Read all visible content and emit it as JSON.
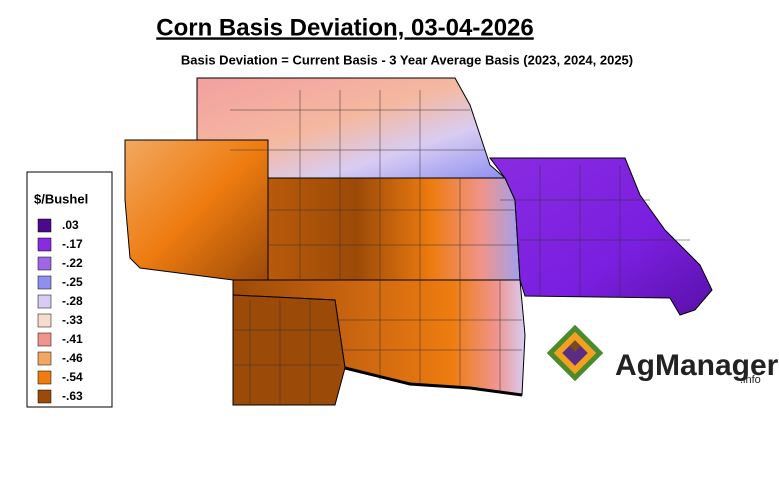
{
  "title": "Corn Basis Deviation, 03-04-2026",
  "subtitle": "Basis Deviation = Current Basis - 3 Year Average Basis (2023, 2024, 2025)",
  "legend": {
    "title": "$/Bushel",
    "items": [
      {
        "label": ".03",
        "color": "#4b0a8c"
      },
      {
        "label": "-.17",
        "color": "#8a2be2"
      },
      {
        "label": "-.22",
        "color": "#a066e6"
      },
      {
        "label": "-.25",
        "color": "#8f8ff0"
      },
      {
        "label": "-.28",
        "color": "#d8ccf2"
      },
      {
        "label": "-.33",
        "color": "#f5dccc"
      },
      {
        "label": "-.41",
        "color": "#f0948c"
      },
      {
        "label": "-.46",
        "color": "#f2a860"
      },
      {
        "label": "-.54",
        "color": "#ee7c10"
      },
      {
        "label": "-.63",
        "color": "#9c4a08"
      }
    ]
  },
  "logo": {
    "name": "AgManager",
    "suffix": ".info"
  }
}
